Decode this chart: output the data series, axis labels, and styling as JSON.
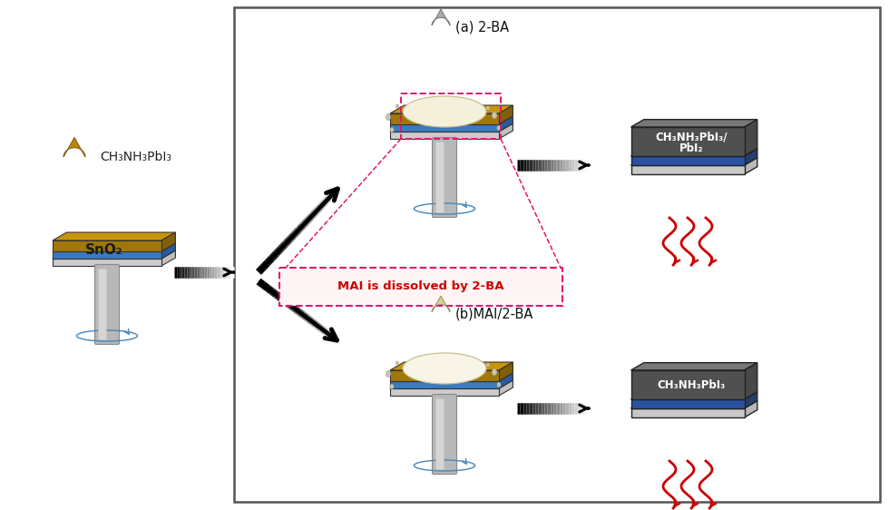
{
  "bg_color": "#ffffff",
  "panel_border": "#555555",
  "blue_top": "#6aade4",
  "blue_side": "#3a7abf",
  "blue_dark": "#2a5a9f",
  "white_layer": "#e8e8e8",
  "gold_layer": "#c8950a",
  "gray_top": "#787878",
  "gray_dark": "#505050",
  "blue_etl": "#4472c4",
  "blue_etl_dark": "#2a52a4",
  "droplet_gold": "#b8860b",
  "droplet_gray": "#aaaaaa",
  "droplet_cream": "#d8d090",
  "blob_top_color": "#f5f0dc",
  "blob_edge": "#c8c090",
  "small_drop": "#ccc8a0",
  "cyl_body": "#b8b8b8",
  "cyl_hi": "#d8d8d8",
  "cyl_sh": "#888888",
  "rot_ring": "#4488bb",
  "arrow_black": "#111111",
  "red_wave": "#cc0000",
  "pink_dash": "#e0186c",
  "mai_text_color": "#cc0000",
  "mai_box_fill": "#fff5f5",
  "label_a": "(a) 2-BA",
  "label_b": "(b)MAI/2-BA",
  "mai_text": "MAI is dissolved by 2-BA",
  "ch3nh3pbi3": "CH₃NH₃PbI₃",
  "ch3nh3pbi3_pbi2_1": "CH₃NH₃PbI₃/",
  "ch3nh3pbi3_pbi2_2": "PbI₂",
  "sno2_label": "SnO₂"
}
